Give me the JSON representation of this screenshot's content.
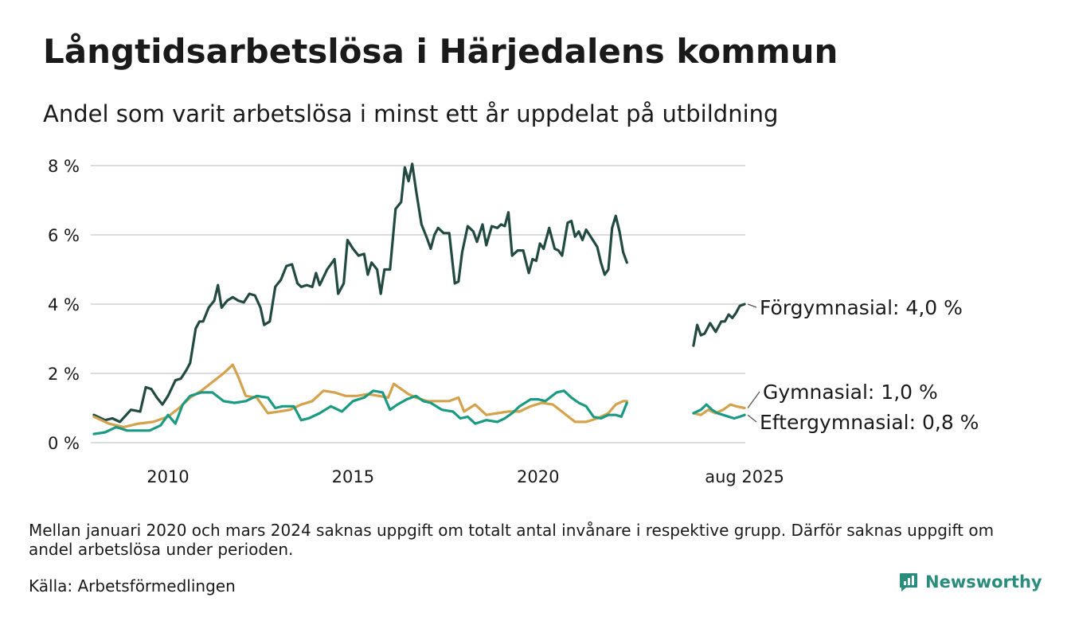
{
  "header": {
    "title": "Långtidsarbetslösa i Härjedalens kommun",
    "subtitle": "Andel som varit arbetslösa i minst ett år uppdelat på utbildning"
  },
  "footer": {
    "note": "Mellan januari 2020 och mars 2024 saknas uppgift om totalt antal invånare i respektive grupp. Därför saknas uppgift om andel arbetslösa under perioden.",
    "source": "Källa: Arbetsförmedlingen",
    "brand": "Newsworthy"
  },
  "colors": {
    "forgymnasial": "#224a42",
    "gymnasial": "#d4a24c",
    "eftergymnasial": "#1a9a82",
    "grid": "#dcdcdc",
    "brand": "#2a8c7c"
  },
  "chart_data": {
    "type": "line",
    "x_unit": "year",
    "xlim": [
      2008.0,
      2025.6
    ],
    "ylim": [
      0,
      8
    ],
    "y_ticks": [
      0,
      2,
      4,
      6,
      8
    ],
    "y_tick_labels": [
      "0 %",
      "2 %",
      "4 %",
      "6 %",
      "8 %"
    ],
    "x_ticks": [
      2010,
      2015,
      2020,
      2025.58
    ],
    "x_tick_labels": [
      "2010",
      "2015",
      "2020",
      "aug 2025"
    ],
    "grid": true,
    "series": [
      {
        "name": "Förgymnasial",
        "end_label": "Förgymnasial: 4,0 %",
        "segments": [
          [
            [
              2008.0,
              0.8
            ],
            [
              2008.3,
              0.65
            ],
            [
              2008.5,
              0.7
            ],
            [
              2008.7,
              0.6
            ],
            [
              2009.0,
              0.95
            ],
            [
              2009.25,
              0.9
            ],
            [
              2009.4,
              1.6
            ],
            [
              2009.55,
              1.55
            ],
            [
              2009.7,
              1.3
            ],
            [
              2009.85,
              1.1
            ],
            [
              2010.0,
              1.35
            ],
            [
              2010.2,
              1.8
            ],
            [
              2010.35,
              1.85
            ],
            [
              2010.5,
              2.1
            ],
            [
              2010.6,
              2.3
            ],
            [
              2010.75,
              3.3
            ],
            [
              2010.85,
              3.5
            ],
            [
              2010.95,
              3.5
            ],
            [
              2011.1,
              3.9
            ],
            [
              2011.25,
              4.1
            ],
            [
              2011.35,
              4.55
            ],
            [
              2011.45,
              3.9
            ],
            [
              2011.6,
              4.1
            ],
            [
              2011.75,
              4.2
            ],
            [
              2011.9,
              4.1
            ],
            [
              2012.05,
              4.05
            ],
            [
              2012.2,
              4.3
            ],
            [
              2012.35,
              4.25
            ],
            [
              2012.5,
              3.9
            ],
            [
              2012.6,
              3.4
            ],
            [
              2012.75,
              3.5
            ],
            [
              2012.9,
              4.5
            ],
            [
              2013.05,
              4.7
            ],
            [
              2013.2,
              5.1
            ],
            [
              2013.35,
              5.15
            ],
            [
              2013.5,
              4.6
            ],
            [
              2013.6,
              4.5
            ],
            [
              2013.75,
              4.55
            ],
            [
              2013.9,
              4.5
            ],
            [
              2014.0,
              4.9
            ],
            [
              2014.1,
              4.55
            ],
            [
              2014.3,
              5.0
            ],
            [
              2014.5,
              5.3
            ],
            [
              2014.6,
              4.3
            ],
            [
              2014.75,
              4.6
            ],
            [
              2014.85,
              5.85
            ],
            [
              2015.0,
              5.6
            ],
            [
              2015.15,
              5.4
            ],
            [
              2015.3,
              5.45
            ],
            [
              2015.4,
              4.85
            ],
            [
              2015.5,
              5.2
            ],
            [
              2015.65,
              5.0
            ],
            [
              2015.75,
              4.3
            ],
            [
              2015.85,
              5.0
            ],
            [
              2016.0,
              5.0
            ],
            [
              2016.15,
              6.75
            ],
            [
              2016.3,
              6.95
            ],
            [
              2016.4,
              7.95
            ],
            [
              2016.5,
              7.55
            ],
            [
              2016.6,
              8.05
            ],
            [
              2016.7,
              7.3
            ],
            [
              2016.85,
              6.3
            ],
            [
              2017.0,
              5.9
            ],
            [
              2017.1,
              5.6
            ],
            [
              2017.2,
              6.0
            ],
            [
              2017.3,
              6.2
            ],
            [
              2017.45,
              6.05
            ],
            [
              2017.6,
              6.05
            ],
            [
              2017.75,
              4.6
            ],
            [
              2017.85,
              4.65
            ],
            [
              2017.95,
              5.5
            ],
            [
              2018.1,
              6.25
            ],
            [
              2018.25,
              6.1
            ],
            [
              2018.35,
              5.8
            ],
            [
              2018.5,
              6.3
            ],
            [
              2018.6,
              5.7
            ],
            [
              2018.75,
              6.25
            ],
            [
              2018.9,
              6.2
            ],
            [
              2019.0,
              6.3
            ],
            [
              2019.1,
              6.25
            ],
            [
              2019.2,
              6.65
            ],
            [
              2019.3,
              5.4
            ],
            [
              2019.45,
              5.55
            ],
            [
              2019.6,
              5.55
            ],
            [
              2019.75,
              4.9
            ],
            [
              2019.85,
              5.3
            ],
            [
              2019.95,
              5.25
            ],
            [
              2020.05,
              5.75
            ],
            [
              2020.15,
              5.6
            ],
            [
              2020.3,
              6.2
            ],
            [
              2020.45,
              5.6
            ],
            [
              2020.55,
              5.55
            ],
            [
              2020.65,
              5.4
            ],
            [
              2020.8,
              6.35
            ],
            [
              2020.9,
              6.4
            ],
            [
              2021.0,
              5.95
            ],
            [
              2021.1,
              6.1
            ],
            [
              2021.2,
              5.85
            ],
            [
              2021.3,
              6.15
            ],
            [
              2021.45,
              5.9
            ],
            [
              2021.6,
              5.65
            ],
            [
              2021.7,
              5.2
            ],
            [
              2021.8,
              4.85
            ],
            [
              2021.9,
              5.0
            ],
            [
              2022.0,
              6.2
            ],
            [
              2022.1,
              6.55
            ],
            [
              2022.2,
              6.1
            ],
            [
              2022.3,
              5.5
            ],
            [
              2022.4,
              5.2
            ]
          ],
          [
            [
              2024.2,
              2.8
            ],
            [
              2024.3,
              3.4
            ],
            [
              2024.4,
              3.1
            ],
            [
              2024.5,
              3.15
            ],
            [
              2024.65,
              3.45
            ],
            [
              2024.8,
              3.2
            ],
            [
              2024.95,
              3.5
            ],
            [
              2025.05,
              3.5
            ],
            [
              2025.15,
              3.7
            ],
            [
              2025.25,
              3.6
            ],
            [
              2025.35,
              3.75
            ],
            [
              2025.45,
              3.95
            ],
            [
              2025.58,
              4.0
            ]
          ]
        ]
      },
      {
        "name": "Gymnasial",
        "end_label": "Gymnasial: 1,0 %",
        "segments": [
          [
            [
              2008.0,
              0.75
            ],
            [
              2008.4,
              0.55
            ],
            [
              2008.8,
              0.45
            ],
            [
              2009.2,
              0.55
            ],
            [
              2009.6,
              0.6
            ],
            [
              2010.0,
              0.75
            ],
            [
              2010.3,
              1.0
            ],
            [
              2010.6,
              1.3
            ],
            [
              2010.9,
              1.5
            ],
            [
              2011.2,
              1.75
            ],
            [
              2011.5,
              2.0
            ],
            [
              2011.75,
              2.25
            ],
            [
              2011.9,
              1.9
            ],
            [
              2012.1,
              1.35
            ],
            [
              2012.4,
              1.3
            ],
            [
              2012.7,
              0.85
            ],
            [
              2013.0,
              0.9
            ],
            [
              2013.3,
              0.95
            ],
            [
              2013.6,
              1.1
            ],
            [
              2013.9,
              1.2
            ],
            [
              2014.2,
              1.5
            ],
            [
              2014.5,
              1.45
            ],
            [
              2014.8,
              1.35
            ],
            [
              2015.1,
              1.35
            ],
            [
              2015.4,
              1.4
            ],
            [
              2015.7,
              1.35
            ],
            [
              2015.95,
              1.3
            ],
            [
              2016.1,
              1.7
            ],
            [
              2016.3,
              1.55
            ],
            [
              2016.5,
              1.4
            ],
            [
              2016.7,
              1.3
            ],
            [
              2017.0,
              1.2
            ],
            [
              2017.3,
              1.2
            ],
            [
              2017.6,
              1.2
            ],
            [
              2017.85,
              1.3
            ],
            [
              2018.0,
              0.9
            ],
            [
              2018.3,
              1.1
            ],
            [
              2018.6,
              0.8
            ],
            [
              2018.9,
              0.85
            ],
            [
              2019.2,
              0.9
            ],
            [
              2019.5,
              0.9
            ],
            [
              2019.8,
              1.05
            ],
            [
              2020.1,
              1.15
            ],
            [
              2020.4,
              1.1
            ],
            [
              2020.7,
              0.85
            ],
            [
              2021.0,
              0.6
            ],
            [
              2021.3,
              0.6
            ],
            [
              2021.6,
              0.7
            ],
            [
              2021.9,
              0.85
            ],
            [
              2022.1,
              1.1
            ],
            [
              2022.3,
              1.2
            ],
            [
              2022.4,
              1.2
            ]
          ],
          [
            [
              2024.2,
              0.85
            ],
            [
              2024.4,
              0.8
            ],
            [
              2024.6,
              0.95
            ],
            [
              2024.8,
              0.85
            ],
            [
              2025.0,
              0.95
            ],
            [
              2025.2,
              1.1
            ],
            [
              2025.35,
              1.05
            ],
            [
              2025.58,
              1.0
            ]
          ]
        ]
      },
      {
        "name": "Eftergymnasial",
        "end_label": "Eftergymnasial: 0,8 %",
        "segments": [
          [
            [
              2008.0,
              0.25
            ],
            [
              2008.3,
              0.3
            ],
            [
              2008.6,
              0.45
            ],
            [
              2008.9,
              0.35
            ],
            [
              2009.2,
              0.35
            ],
            [
              2009.5,
              0.35
            ],
            [
              2009.8,
              0.5
            ],
            [
              2010.0,
              0.8
            ],
            [
              2010.2,
              0.55
            ],
            [
              2010.4,
              1.1
            ],
            [
              2010.6,
              1.35
            ],
            [
              2010.9,
              1.45
            ],
            [
              2011.2,
              1.45
            ],
            [
              2011.5,
              1.2
            ],
            [
              2011.8,
              1.15
            ],
            [
              2012.1,
              1.2
            ],
            [
              2012.4,
              1.35
            ],
            [
              2012.7,
              1.3
            ],
            [
              2012.9,
              1.0
            ],
            [
              2013.1,
              1.05
            ],
            [
              2013.4,
              1.05
            ],
            [
              2013.6,
              0.65
            ],
            [
              2013.8,
              0.7
            ],
            [
              2014.1,
              0.85
            ],
            [
              2014.4,
              1.05
            ],
            [
              2014.7,
              0.9
            ],
            [
              2015.0,
              1.2
            ],
            [
              2015.3,
              1.3
            ],
            [
              2015.55,
              1.5
            ],
            [
              2015.8,
              1.45
            ],
            [
              2016.0,
              0.95
            ],
            [
              2016.2,
              1.1
            ],
            [
              2016.45,
              1.25
            ],
            [
              2016.7,
              1.35
            ],
            [
              2016.9,
              1.2
            ],
            [
              2017.1,
              1.15
            ],
            [
              2017.4,
              0.95
            ],
            [
              2017.7,
              0.9
            ],
            [
              2017.9,
              0.7
            ],
            [
              2018.1,
              0.75
            ],
            [
              2018.3,
              0.55
            ],
            [
              2018.6,
              0.65
            ],
            [
              2018.9,
              0.6
            ],
            [
              2019.1,
              0.7
            ],
            [
              2019.3,
              0.85
            ],
            [
              2019.5,
              1.05
            ],
            [
              2019.8,
              1.25
            ],
            [
              2020.0,
              1.25
            ],
            [
              2020.2,
              1.2
            ],
            [
              2020.5,
              1.45
            ],
            [
              2020.7,
              1.5
            ],
            [
              2020.9,
              1.3
            ],
            [
              2021.1,
              1.15
            ],
            [
              2021.3,
              1.05
            ],
            [
              2021.5,
              0.75
            ],
            [
              2021.7,
              0.7
            ],
            [
              2021.9,
              0.8
            ],
            [
              2022.1,
              0.8
            ],
            [
              2022.25,
              0.75
            ],
            [
              2022.4,
              1.15
            ]
          ],
          [
            [
              2024.2,
              0.85
            ],
            [
              2024.4,
              0.95
            ],
            [
              2024.55,
              1.1
            ],
            [
              2024.7,
              0.95
            ],
            [
              2024.85,
              0.85
            ],
            [
              2025.0,
              0.8
            ],
            [
              2025.15,
              0.75
            ],
            [
              2025.3,
              0.7
            ],
            [
              2025.45,
              0.75
            ],
            [
              2025.58,
              0.8
            ]
          ]
        ]
      }
    ]
  }
}
